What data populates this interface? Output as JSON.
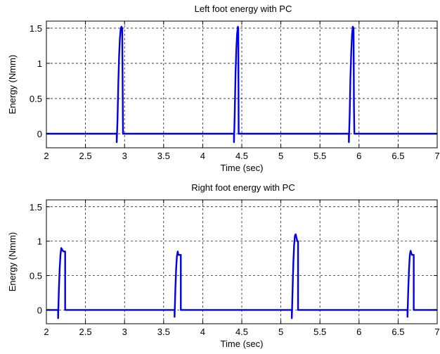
{
  "chart_data": [
    {
      "type": "line",
      "title": "Left foot energy with PC",
      "xlabel": "Time (sec)",
      "ylabel": "Energy (Nmm)",
      "xlim": [
        2,
        7
      ],
      "ylim": [
        -0.2,
        1.6
      ],
      "xticks": [
        "2",
        "2.5",
        "3",
        "3.5",
        "4",
        "4.5",
        "5",
        "5.5",
        "6",
        "6.5",
        "7"
      ],
      "yticks": [
        "0",
        "0.5",
        "1",
        "1.5"
      ],
      "grid": true,
      "series": [
        {
          "color": "#0000e6",
          "x": [
            2.0,
            2.9,
            2.9,
            2.91,
            2.92,
            2.93,
            2.94,
            2.95,
            2.96,
            2.97,
            2.975,
            2.98,
            2.98,
            4.4,
            4.4,
            4.41,
            4.42,
            4.43,
            4.44,
            4.45,
            4.455,
            4.46,
            4.46,
            5.87,
            5.87,
            5.88,
            5.89,
            5.9,
            5.91,
            5.92,
            5.93,
            5.935,
            5.94,
            5.94,
            7.0
          ],
          "y": [
            0,
            0,
            -0.12,
            0.2,
            0.7,
            1.1,
            1.35,
            1.48,
            1.52,
            1.5,
            0.8,
            0.02,
            0,
            0,
            -0.12,
            0.3,
            0.85,
            1.2,
            1.42,
            1.52,
            1.5,
            0.02,
            0,
            0,
            -0.12,
            0.25,
            0.8,
            1.15,
            1.4,
            1.52,
            1.5,
            0.4,
            0.02,
            0,
            0
          ]
        }
      ]
    },
    {
      "type": "line",
      "title": "Right foot energy with PC",
      "xlabel": "Time (sec)",
      "ylabel": "Energy (Nmm)",
      "xlim": [
        2,
        7
      ],
      "ylim": [
        -0.2,
        1.6
      ],
      "xticks": [
        "2",
        "2.5",
        "3",
        "3.5",
        "4",
        "4.5",
        "5",
        "5.5",
        "6",
        "6.5",
        "7"
      ],
      "yticks": [
        "0",
        "0.5",
        "1",
        "1.5"
      ],
      "grid": true,
      "series": [
        {
          "color": "#0000e6",
          "x": [
            2.0,
            2.15,
            2.15,
            2.16,
            2.17,
            2.18,
            2.19,
            2.2,
            2.21,
            2.22,
            2.24,
            2.24,
            3.64,
            3.64,
            3.65,
            3.66,
            3.67,
            3.68,
            3.69,
            3.7,
            3.72,
            3.72,
            5.14,
            5.14,
            5.15,
            5.16,
            5.17,
            5.18,
            5.19,
            5.2,
            5.21,
            5.22,
            5.22,
            6.62,
            6.62,
            6.63,
            6.64,
            6.65,
            6.66,
            6.67,
            6.68,
            6.7,
            6.7,
            7.0
          ],
          "y": [
            0,
            0,
            -0.12,
            0.3,
            0.6,
            0.8,
            0.9,
            0.88,
            0.86,
            0.85,
            0.85,
            0,
            0,
            -0.1,
            0.3,
            0.6,
            0.78,
            0.85,
            0.8,
            0.8,
            0.8,
            0,
            0,
            -0.12,
            0.3,
            0.7,
            0.95,
            1.08,
            1.1,
            1.05,
            1.0,
            1.0,
            0,
            0,
            -0.1,
            0.3,
            0.6,
            0.8,
            0.86,
            0.82,
            0.8,
            0.8,
            0,
            0
          ]
        }
      ]
    }
  ]
}
